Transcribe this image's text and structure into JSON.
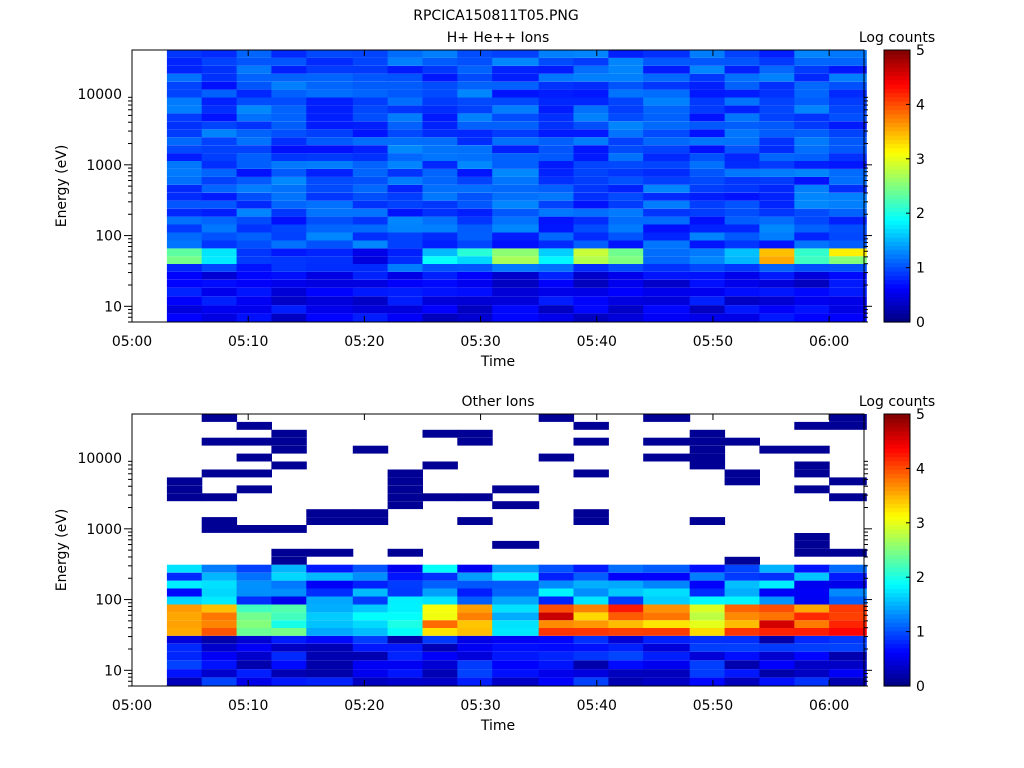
{
  "figure": {
    "title": "RPCICA150811T05.PNG"
  },
  "chart_data": [
    {
      "type": "heatmap",
      "title": "H+ He++ Ions",
      "xlabel": "Time",
      "ylabel": "Energy (eV)",
      "x_scale": "time",
      "x_ticks": [
        "05:00",
        "05:10",
        "05:20",
        "05:30",
        "05:40",
        "05:50",
        "06:00"
      ],
      "xlim": [
        "05:00",
        "06:03"
      ],
      "y_scale": "log",
      "y_ticks": [
        10,
        100,
        1000,
        10000
      ],
      "y_tick_labels": [
        "10",
        "100",
        "1000",
        "10000"
      ],
      "ylim": [
        6,
        42000
      ],
      "colorbar": {
        "label": "Log counts",
        "range": [
          0,
          5
        ],
        "ticks": [
          "0",
          "1",
          "2",
          "3",
          "4",
          "5"
        ],
        "colormap": "jet"
      },
      "time_bins": [
        "05:03",
        "05:06",
        "05:09",
        "05:12",
        "05:15",
        "05:19",
        "05:22",
        "05:25",
        "05:28",
        "05:31",
        "05:35",
        "05:38",
        "05:41",
        "05:44",
        "05:48",
        "05:51",
        "05:54",
        "05:57",
        "06:00"
      ],
      "energy_bins_ev": [
        7,
        9,
        12,
        16,
        21,
        27,
        35,
        45,
        58,
        75,
        97,
        126,
        163,
        211,
        273,
        354,
        458,
        593,
        768,
        994,
        1287,
        1666,
        2157,
        2793,
        3617,
        4683,
        6064,
        7852,
        10167,
        13164,
        17045,
        22070,
        28577,
        37000
      ],
      "description_of_values": "counts fill all bins at ~1 log counts; low energy bins (7-27 eV) ~0.3-0.8; a peak band near 45-58 eV reaching 2-3 log counts in several intervals",
      "peak_band": {
        "energy_ev": [
          45,
          58
        ],
        "values_by_time": [
          2.2,
          1.6,
          0.9,
          0.8,
          0.9,
          0.5,
          0.9,
          1.7,
          1.9,
          2.7,
          1.7,
          2.6,
          2.4,
          1.3,
          1.2,
          1.4,
          3.2,
          1.9,
          2.8
        ]
      }
    },
    {
      "type": "heatmap",
      "title": "Other Ions",
      "xlabel": "Time",
      "ylabel": "Energy (eV)",
      "x_scale": "time",
      "x_ticks": [
        "05:00",
        "05:10",
        "05:20",
        "05:30",
        "05:40",
        "05:50",
        "06:00"
      ],
      "xlim": [
        "05:00",
        "06:03"
      ],
      "y_scale": "log",
      "y_ticks": [
        10,
        100,
        1000,
        10000
      ],
      "y_tick_labels": [
        "10",
        "100",
        "1000",
        "10000"
      ],
      "ylim": [
        6,
        42000
      ],
      "colorbar": {
        "label": "Log counts",
        "range": [
          0,
          5
        ],
        "ticks": [
          "0",
          "1",
          "2",
          "3",
          "4",
          "5"
        ],
        "colormap": "jet"
      },
      "time_bins": [
        "05:03",
        "05:06",
        "05:09",
        "05:12",
        "05:15",
        "05:19",
        "05:22",
        "05:25",
        "05:28",
        "05:31",
        "05:35",
        "05:38",
        "05:41",
        "05:44",
        "05:48",
        "05:51",
        "05:54",
        "05:57",
        "06:00"
      ],
      "energy_bins_ev": [
        7,
        9,
        12,
        16,
        21,
        27,
        35,
        45,
        58,
        75,
        97,
        126,
        163,
        211,
        273,
        354,
        458,
        593,
        768,
        994,
        1287,
        1666,
        2157,
        2793,
        3617,
        4683,
        6064,
        7852,
        10167,
        13164,
        17045,
        22070,
        28577,
        37000
      ],
      "description_of_values": "dense counts below ~250 eV; strong peak 35-75 eV reaching 3.5-4.5 log counts; sparse single bins at ~0.1 log counts above 300 eV",
      "peak_band": {
        "energy_ev": [
          35,
          75
        ],
        "values_by_time": [
          4.0,
          3.8,
          2.6,
          2.4,
          1.6,
          1.8,
          2.0,
          3.8,
          3.6,
          1.8,
          4.5,
          4.0,
          4.2,
          4.0,
          3.4,
          4.3,
          4.4,
          4.2,
          4.5
        ]
      }
    }
  ]
}
